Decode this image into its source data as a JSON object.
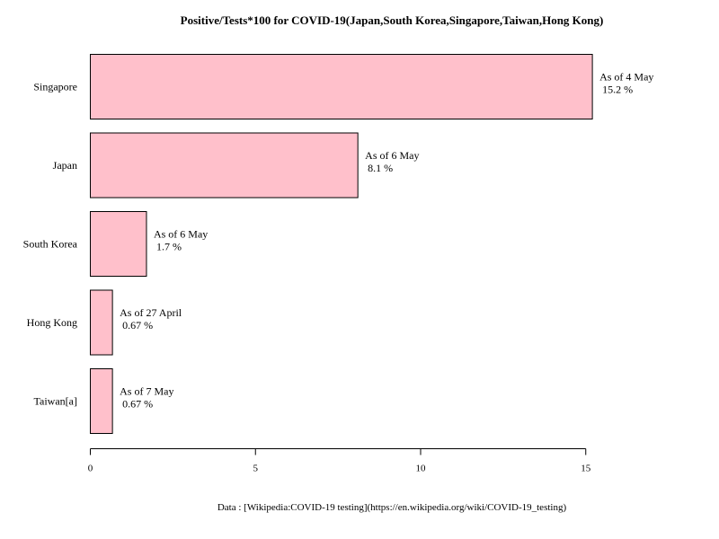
{
  "chart_data": {
    "type": "bar",
    "orientation": "horizontal",
    "title": "Positive/Tests*100 for COVID-19(Japan,South Korea,Singapore,Taiwan,Hong Kong)",
    "categories": [
      "Singapore",
      "Japan",
      "South Korea",
      "Hong Kong",
      "Taiwan[a]"
    ],
    "values": [
      15.2,
      8.1,
      1.7,
      0.67,
      0.67
    ],
    "value_labels": [
      "15.2 %",
      "8.1 %",
      "1.7 %",
      "0.67 %",
      "0.67 %"
    ],
    "date_labels": [
      "As of 4 May",
      "As of 6 May",
      "As of 6 May",
      "As of 27 April",
      "As of 7 May"
    ],
    "xlabel": "",
    "ylabel": "",
    "xlim": [
      0,
      15.2
    ],
    "x_ticks": [
      0,
      5,
      10,
      15
    ],
    "grid": false,
    "legend": "none",
    "bar_fill": "#ffc0cb",
    "bar_stroke": "#000000",
    "source": "Data : [Wikipedia:COVID-19 testing](https://en.wikipedia.org/wiki/COVID-19_testing)"
  }
}
